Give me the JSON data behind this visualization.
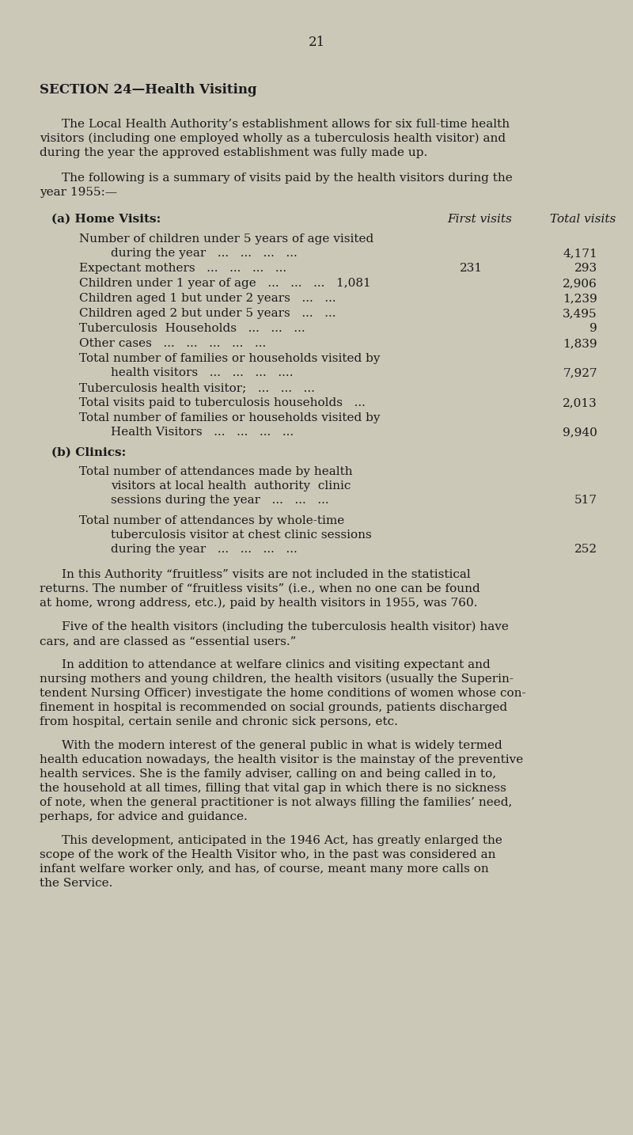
{
  "page_number": "21",
  "section_title": "SECTION 24—Health Visiting",
  "background_color": "#ccc8b8",
  "text_color": "#1a1a1a",
  "para1": "The Local Health Authority’s establishment allows for six full-time health visitors (including one employed wholly as a tuberculosis health visitor) and during the year the approved establishment was fully made up.",
  "para2_line1": "The following is a summary of visits paid by the health visitors during the",
  "para2_line2": "year 1955:—",
  "section_a_label": "(a) Home Visits:",
  "col_header1": "First visits",
  "col_header2": "Total visits",
  "section_b_label": "(b) Clinics:",
  "para3_line1": "In this Authority “fruitless” visits are not included in the statistical",
  "para3_line2": "returns. The number of “fruitless visits” (i.e., when no one can be found",
  "para3_line3": "at home, wrong address, etc.), paid by health visitors in 1955, was 760.",
  "para4_line1": "Five of the health visitors (including the tuberculosis health visitor) have",
  "para4_line2": "cars, and are classed as “essential users.”",
  "para5_line1": "In addition to attendance at welfare clinics and visiting expectant and",
  "para5_line2": "nursing mothers and young children, the health visitors (usually the Superin-",
  "para5_line3": "tendent Nursing Officer) investigate the home conditions of women whose con-",
  "para5_line4": "finement in hospital is recommended on social grounds, patients discharged",
  "para5_line5": "from hospital, certain senile and chronic sick persons, etc.",
  "para6_line1": "With the modern interest of the general public in what is widely termed",
  "para6_line2": "health education nowadays, the health visitor is the mainstay of the preventive",
  "para6_line3": "health services. She is the family adviser, calling on and being called in to,",
  "para6_line4": "the household at all times, filling that vital gap in which there is no sickness",
  "para6_line5": "of note, when the general practitioner is not always filling the families’ need,",
  "para6_line6": "perhaps, for advice and guidance.",
  "para7_line1": "This development, anticipated in the 1946 Act, has greatly enlarged the",
  "para7_line2": "scope of the work of the Health Visitor who, in the past was considered an",
  "para7_line3": "infant welfare worker only, and has, of course, meant many more calls on",
  "para7_line4": "the Service."
}
